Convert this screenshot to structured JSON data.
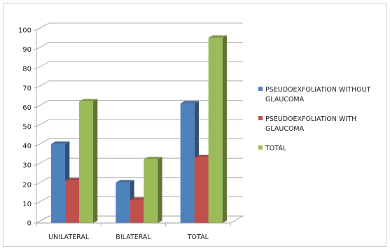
{
  "chart_data": {
    "type": "bar",
    "style": "3d-clustered-column",
    "categories": [
      "UNILATERAL",
      "BILATERAL",
      "TOTAL"
    ],
    "series": [
      {
        "name": "PSEUDOEXFOLIATION WITHOUT GLAUCOMA",
        "values": [
          41,
          21,
          62
        ],
        "color": "#4f81bd"
      },
      {
        "name": "PSEUDOEXFOLIATION WITH GLAUCOMA",
        "values": [
          22,
          12,
          34
        ],
        "color": "#c0504d"
      },
      {
        "name": "TOTAL",
        "values": [
          63,
          33,
          96
        ],
        "color": "#9bbb59"
      }
    ],
    "ylim": [
      0,
      100
    ],
    "yticks": [
      0,
      10,
      20,
      30,
      40,
      50,
      60,
      70,
      80,
      90,
      100
    ],
    "grid": true,
    "legend": "right"
  }
}
